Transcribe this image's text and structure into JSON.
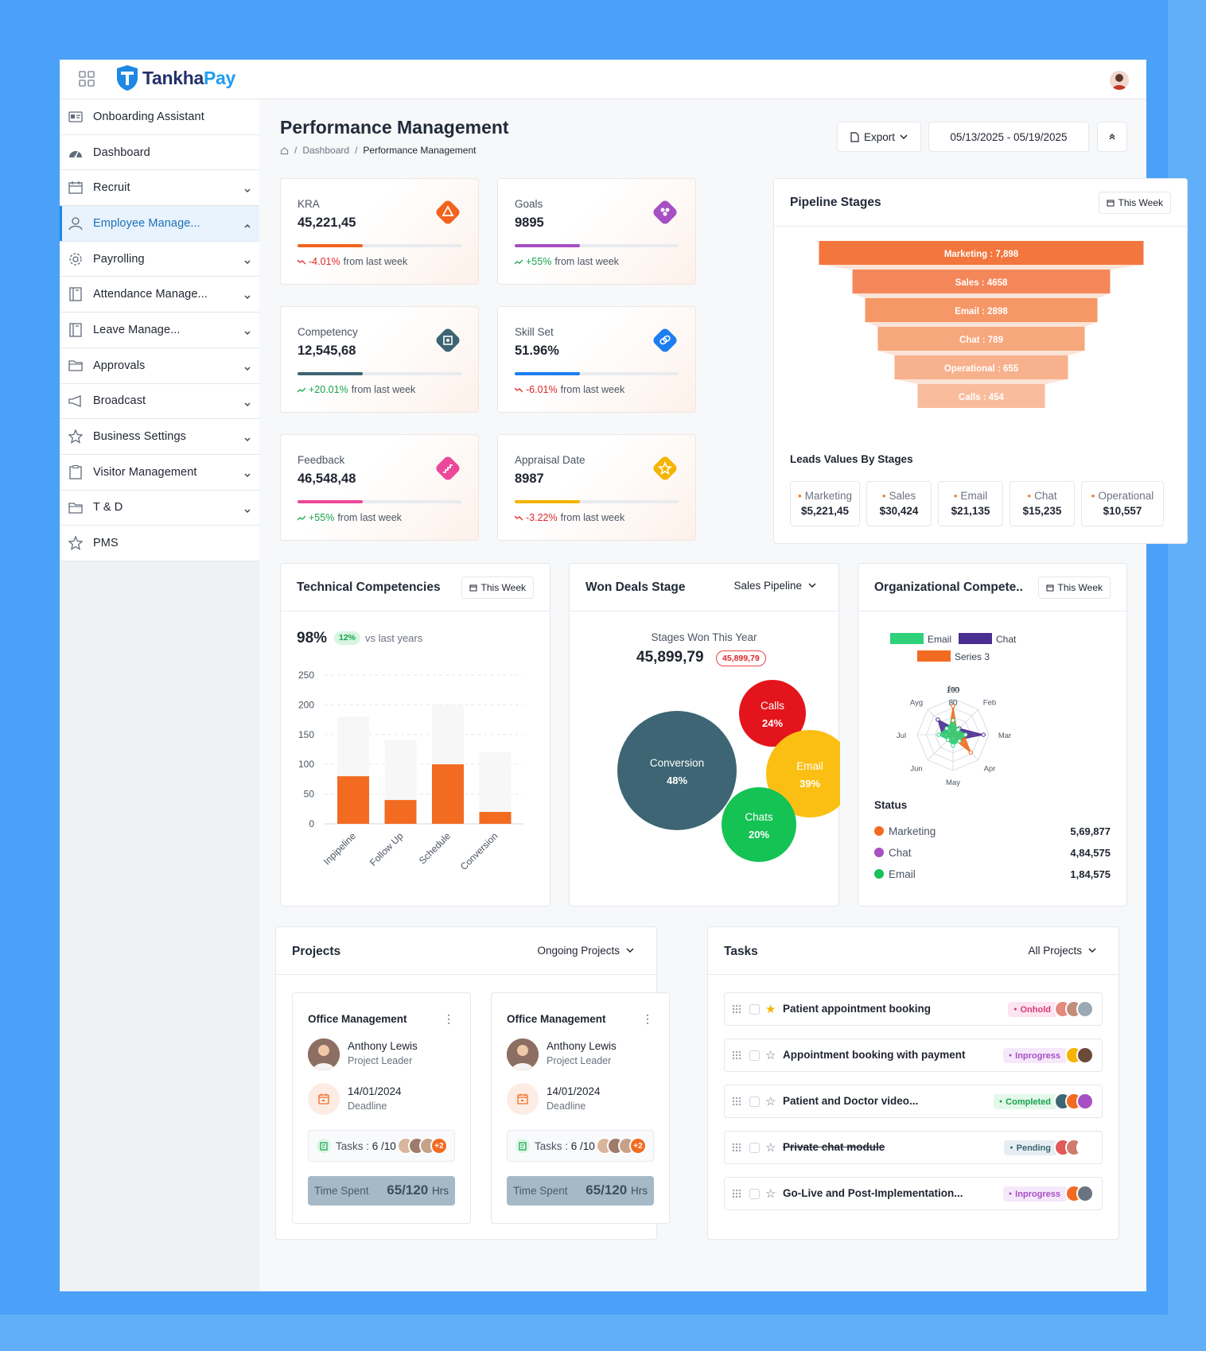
{
  "app": {
    "brand_prefix": "Tankha",
    "brand_suffix": "Pay"
  },
  "sidebar": {
    "items": [
      {
        "label": "Onboarding Assistant",
        "icon": "id-card-icon",
        "chevron": ""
      },
      {
        "label": "Dashboard",
        "icon": "dashboard-gauge-icon",
        "chevron": ""
      },
      {
        "label": "Recruit",
        "icon": "calendar-icon",
        "chevron": "down"
      },
      {
        "label": "Employee Manage...",
        "icon": "user-icon",
        "chevron": "up",
        "active": true
      },
      {
        "label": "Payrolling",
        "icon": "gear-icon",
        "chevron": "down"
      },
      {
        "label": "Attendance Manage...",
        "icon": "book-icon",
        "chevron": "down"
      },
      {
        "label": "Leave Manage...",
        "icon": "book-icon",
        "chevron": "down"
      },
      {
        "label": "Approvals",
        "icon": "folder-icon",
        "chevron": "down"
      },
      {
        "label": "Broadcast",
        "icon": "megaphone-icon",
        "chevron": "down"
      },
      {
        "label": "Business Settings",
        "icon": "star-icon",
        "chevron": "down"
      },
      {
        "label": "Visitor Management",
        "icon": "clipboard-icon",
        "chevron": "down"
      },
      {
        "label": "T & D",
        "icon": "folder-icon",
        "chevron": "down"
      },
      {
        "label": "PMS",
        "icon": "star-icon",
        "chevron": ""
      }
    ]
  },
  "header": {
    "title": "Performance Management",
    "breadcrumb": [
      "Dashboard",
      "Performance Management"
    ],
    "export_label": "Export",
    "date_range": "05/13/2025 - 05/19/2025"
  },
  "kpis": [
    {
      "label": "KRA",
      "value": "45,221,45",
      "change": "-4.01%",
      "suffix": "from last week",
      "dir": "down",
      "progress": 0.4,
      "color": "#f1641f",
      "icon": "triangle-icon"
    },
    {
      "label": "Goals",
      "value": "9895",
      "change": "+55%",
      "suffix": "from last week",
      "dir": "up",
      "progress": 0.4,
      "color": "#a74fc3",
      "icon": "users-icon"
    },
    {
      "label": "Competency",
      "value": "12,545,68",
      "change": "+20.01%",
      "suffix": "from last week",
      "dir": "up",
      "progress": 0.4,
      "color": "#3d6473",
      "icon": "focus-icon"
    },
    {
      "label": "Skill Set",
      "value": "51.96%",
      "change": "-6.01%",
      "suffix": "from last week",
      "dir": "down",
      "progress": 0.4,
      "color": "#1d7ef0",
      "icon": "link-icon"
    },
    {
      "label": "Feedback",
      "value": "46,548,48",
      "change": "+55%",
      "suffix": "from last week",
      "dir": "up",
      "progress": 0.4,
      "color": "#ec4899",
      "icon": "stairs-icon"
    },
    {
      "label": "Appraisal Date",
      "value": "8987",
      "change": "-3.22%",
      "suffix": "from last week",
      "dir": "down",
      "progress": 0.4,
      "color": "#f5b400",
      "icon": "star-icon"
    }
  ],
  "pipeline": {
    "title": "Pipeline Stages",
    "filter": "This Week",
    "leads_title": "Leads Values By Stages",
    "stages": [
      {
        "label": "Marketing : 7,898",
        "value": 7898,
        "color": "#f2763d"
      },
      {
        "label": "Sales : 4658",
        "value": 4658,
        "color": "#f4875a"
      },
      {
        "label": "Email : 2898",
        "value": 2898,
        "color": "#f69767"
      },
      {
        "label": "Chat : 789",
        "value": 789,
        "color": "#f7a77c"
      },
      {
        "label": "Operational : 655",
        "value": 655,
        "color": "#f8b18d"
      },
      {
        "label": "Calls : 454",
        "value": 454,
        "color": "#f9bd9d"
      }
    ],
    "leads": [
      {
        "name": "Marketing",
        "value": "$5,221,45"
      },
      {
        "name": "Sales",
        "value": "$30,424"
      },
      {
        "name": "Email",
        "value": "$21,135"
      },
      {
        "name": "Chat",
        "value": "$15,235"
      },
      {
        "name": "Operational",
        "value": "$10,557"
      }
    ]
  },
  "tech": {
    "title": "Technical Competencies",
    "filter": "This Week",
    "percent": "98%",
    "badge": "12%",
    "compare": "vs last years"
  },
  "won": {
    "title": "Won Deals Stage",
    "filter": "Sales Pipeline",
    "subtitle": "Stages Won This Year",
    "value": "45,899,79",
    "badge": "45,899,79",
    "bubbles": [
      {
        "name": "Conversion",
        "pct": "48%",
        "color": "#3d6574"
      },
      {
        "name": "Calls",
        "pct": "24%",
        "color": "#e4141c"
      },
      {
        "name": "Email",
        "pct": "39%",
        "color": "#fbbf14"
      },
      {
        "name": "Chats",
        "pct": "20%",
        "color": "#15c254"
      }
    ]
  },
  "org": {
    "title": "Organizational Compete..",
    "filter": "This Week",
    "status_title": "Status",
    "status": [
      {
        "name": "Marketing",
        "value": "5,69,877",
        "color": "#f26b21"
      },
      {
        "name": "Chat",
        "value": "4,84,575",
        "color": "#a74fc3"
      },
      {
        "name": "Email",
        "value": "1,84,575",
        "color": "#16c15a"
      }
    ]
  },
  "projects": {
    "title": "Projects",
    "filter": "Ongoing Projects",
    "items": [
      {
        "title": "Office Management",
        "person": "Anthony Lewis",
        "role": "Project Leader",
        "date": "14/01/2024",
        "date_label": "Deadline",
        "tasks_label": "Tasks : ",
        "tasks_value": "6 /10",
        "more": "+2",
        "time_label": "Time Spent",
        "time_value": "65/120",
        "time_unit": "Hrs"
      },
      {
        "title": "Office Management",
        "person": "Anthony Lewis",
        "role": "Project Leader",
        "date": "14/01/2024",
        "date_label": "Deadline",
        "tasks_label": "Tasks : ",
        "tasks_value": "6 /10",
        "more": "+2",
        "time_label": "Time Spent",
        "time_value": "65/120",
        "time_unit": "Hrs"
      }
    ]
  },
  "tasks": {
    "title": "Tasks",
    "filter": "All Projects",
    "items": [
      {
        "title": "Patient appointment booking",
        "status": "Onhold",
        "starred": true,
        "strike": false,
        "fg": "#d9387a",
        "bg": "#fde5ef"
      },
      {
        "title": "Appointment booking with payment",
        "status": "Inprogress",
        "starred": false,
        "strike": false,
        "fg": "#a74fc3",
        "bg": "#f6e8fb"
      },
      {
        "title": "Patient and Doctor video...",
        "status": "Completed",
        "starred": false,
        "strike": false,
        "fg": "#16a34a",
        "bg": "#e3f8ea"
      },
      {
        "title": "Private chat module",
        "status": "Pending",
        "starred": false,
        "strike": true,
        "fg": "#3d6574",
        "bg": "#e5eef2"
      },
      {
        "title": "Go-Live and Post-Implementation...",
        "status": "Inprogress",
        "starred": false,
        "strike": false,
        "fg": "#a74fc3",
        "bg": "#f6e8fb"
      }
    ]
  },
  "chart_data": [
    {
      "type": "bar",
      "title": "",
      "categories": [
        "Inpipeline",
        "Follow Up",
        "Schedule",
        "Conversion"
      ],
      "series": [
        {
          "values": [
            180,
            140,
            200,
            120
          ]
        },
        {
          "values": [
            80,
            40,
            100,
            20
          ]
        }
      ],
      "stacked_overlay": true,
      "ylim": [
        0,
        250
      ],
      "yticks": [
        0,
        50,
        100,
        150,
        200,
        250
      ],
      "colors": [
        "#f7f7f8",
        "#f26b21"
      ],
      "grid": "dashed-horizontal"
    },
    {
      "type": "radar",
      "categories": [
        "Jan",
        "Feb",
        "Mar",
        "Apr",
        "May",
        "Jun",
        "Jul",
        "Ayg"
      ],
      "rticks": [
        80,
        100
      ],
      "legend": [
        "Email",
        "Chat",
        "Series 3"
      ],
      "colors": [
        "#2fd17a",
        "#4b2e91",
        "#f26b21"
      ],
      "series": [
        {
          "name": "Email",
          "values": [
            40,
            20,
            35,
            25,
            30,
            20,
            40,
            25
          ]
        },
        {
          "name": "Chat",
          "values": [
            20,
            25,
            85,
            20,
            15,
            10,
            30,
            60
          ]
        },
        {
          "name": "Series 3",
          "values": [
            80,
            15,
            30,
            70,
            10,
            15,
            20,
            15
          ]
        }
      ]
    }
  ]
}
